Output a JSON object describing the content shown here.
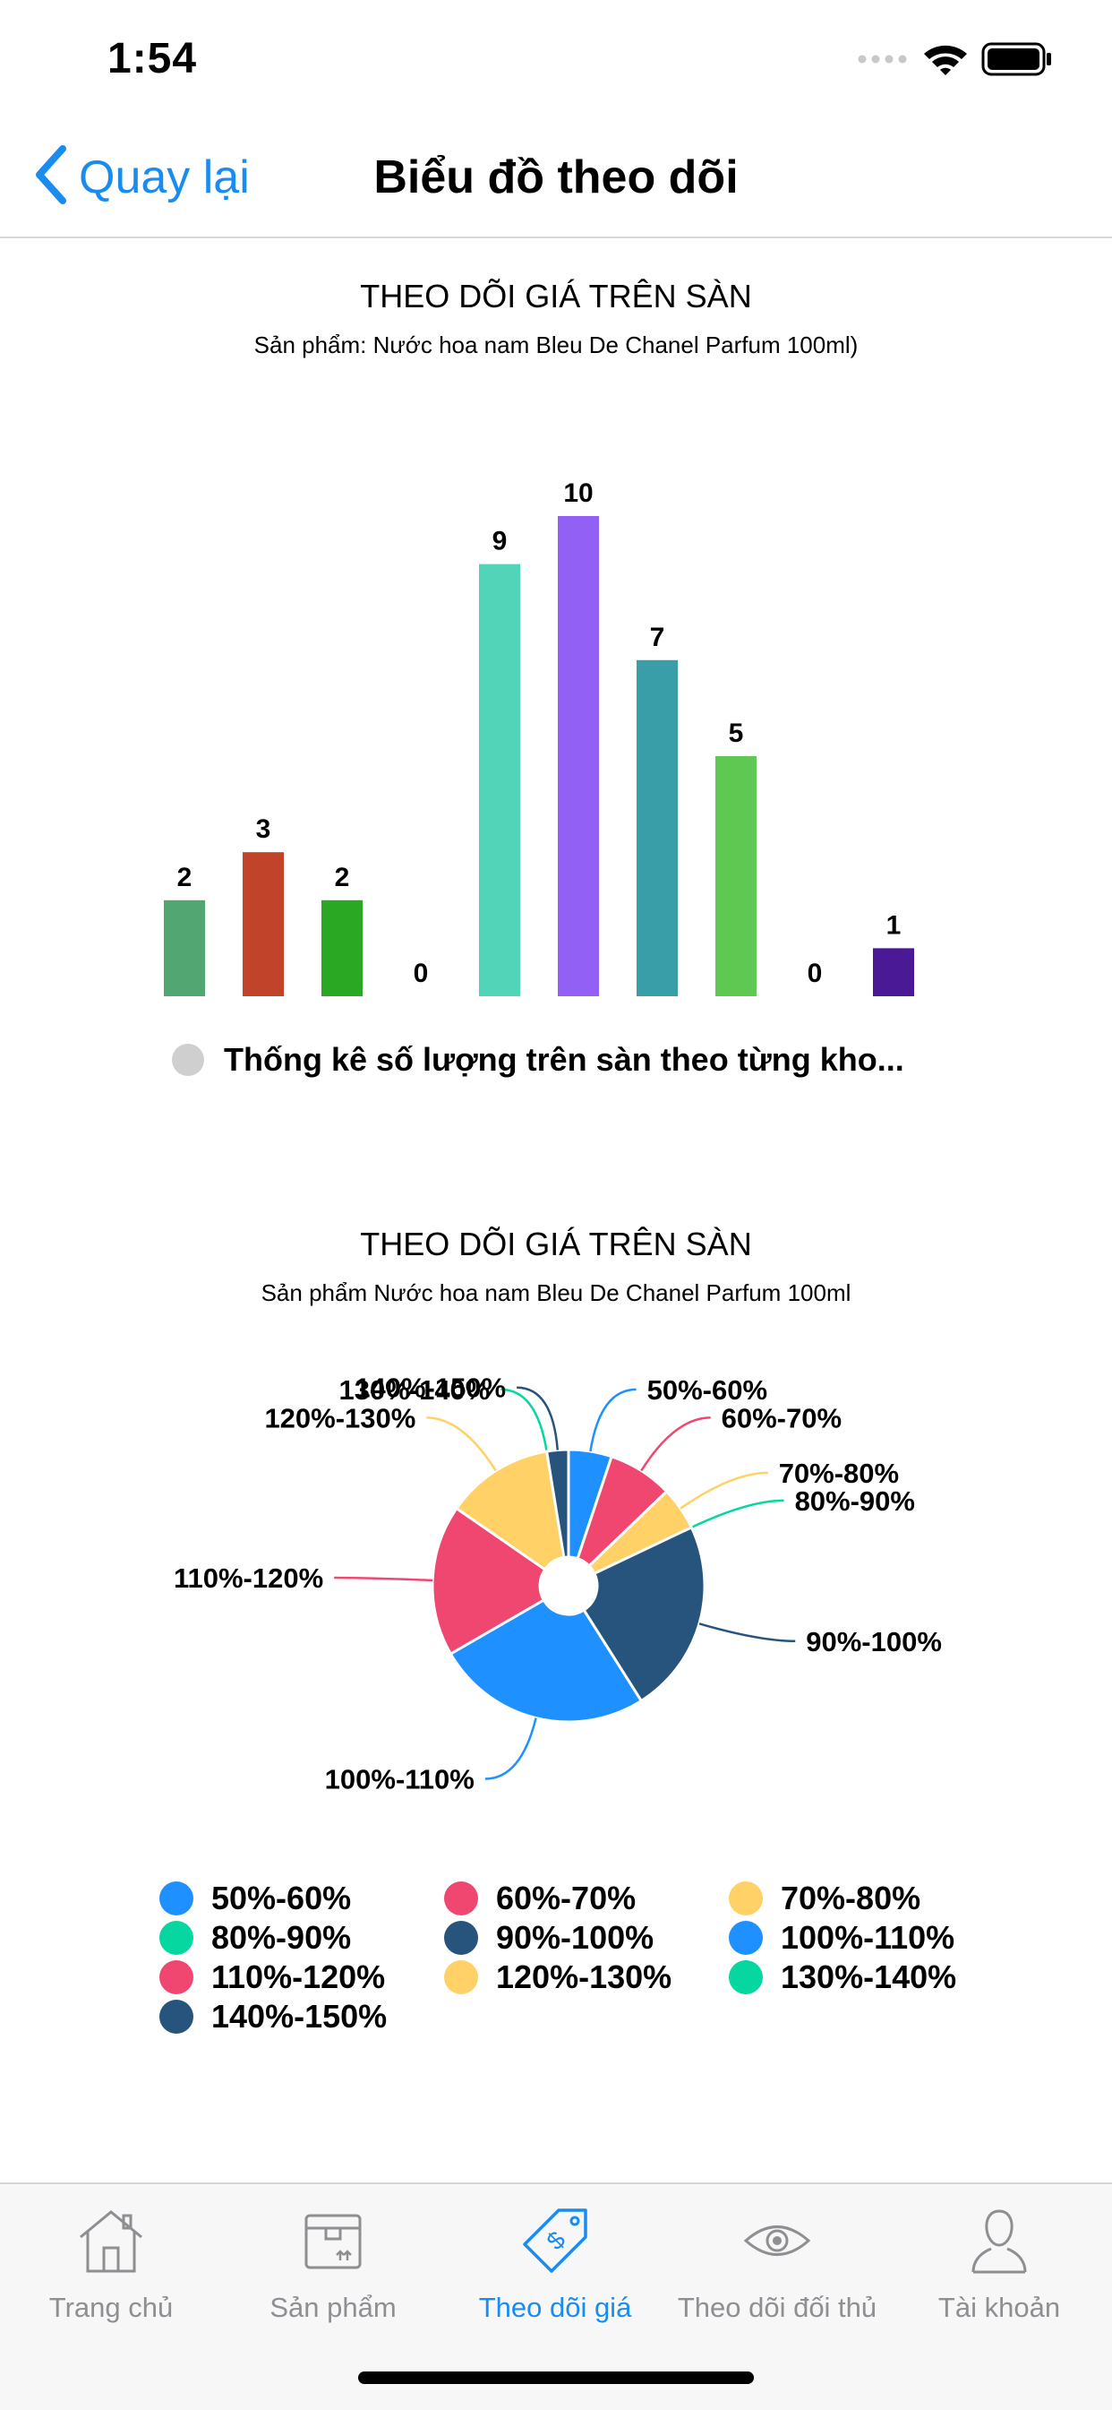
{
  "status_bar": {
    "time": "1:54"
  },
  "nav": {
    "back_label": "Quay lại",
    "title": "Biểu đồ theo dõi"
  },
  "bar_chart": {
    "title": "THEO DÕI GIÁ TRÊN SÀN",
    "subtitle": "Sản phẩm: Nước hoa nam Bleu De Chanel Parfum 100ml)",
    "legend_label": "Thống kê số lượng trên sàn theo từng kho..."
  },
  "pie_chart": {
    "title": "THEO DÕI GIÁ TRÊN SÀN",
    "subtitle": "Sản phẩm Nước hoa nam Bleu De Chanel Parfum 100ml"
  },
  "chart_data": [
    {
      "type": "bar",
      "title": "THEO DÕI GIÁ TRÊN SÀN",
      "subtitle": "Sản phẩm: Nước hoa nam Bleu De Chanel Parfum 100ml)",
      "values": [
        2,
        3,
        2,
        0,
        9,
        10,
        7,
        5,
        0,
        1
      ],
      "colors": [
        "#52a672",
        "#c0432a",
        "#2aa823",
        "#999999",
        "#52d4b8",
        "#9360f5",
        "#3a9ea8",
        "#5ec853",
        "#999999",
        "#4a1a96"
      ],
      "ylim": [
        0,
        10
      ],
      "legend": [
        "Thống kê số lượng trên sàn theo từng kho..."
      ],
      "legend_position": "bottom"
    },
    {
      "type": "pie",
      "title": "THEO DÕI GIÁ TRÊN SÀN",
      "subtitle": "Sản phẩm Nước hoa nam Bleu De Chanel Parfum 100ml",
      "labels": [
        "50%-60%",
        "60%-70%",
        "70%-80%",
        "80%-90%",
        "90%-100%",
        "100%-110%",
        "110%-120%",
        "120%-130%",
        "130%-140%",
        "140%-150%"
      ],
      "values": [
        2,
        3,
        2,
        0,
        9,
        10,
        7,
        5,
        0,
        1
      ],
      "colors": [
        "#1e90ff",
        "#ef476f",
        "#ffd166",
        "#06d6a0",
        "#26547c",
        "#1e90ff",
        "#ef476f",
        "#ffd166",
        "#06d6a0",
        "#26547c"
      ],
      "legend_position": "bottom"
    }
  ]
}
